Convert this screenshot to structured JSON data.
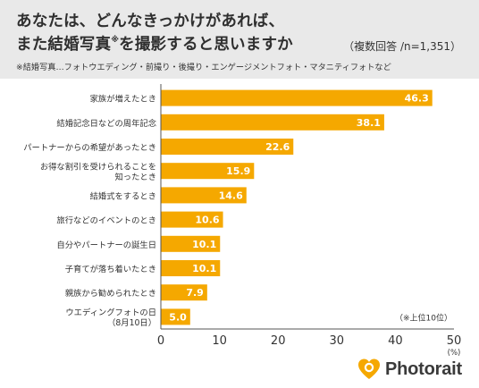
{
  "header": {
    "title_line1": "あなたは、どんなきっかけがあれば、",
    "title_line2_main": "また結婚写真",
    "title_line2_sup": "※",
    "title_line2_rest": "を撮影すると思いますか",
    "sample": "（複数回答 /n=1,351）",
    "note": "※結婚写真…フォトウエディング・前撮り・後撮り・エンゲージメントフォト・マタニティフォトなど"
  },
  "brand": {
    "name": "Photorait",
    "icon": "heart-camera-icon",
    "color": "#f5a800"
  },
  "chart_data": {
    "type": "bar",
    "orientation": "horizontal",
    "categories": [
      [
        "家族が増えたとき"
      ],
      [
        "結婚記念日などの周年記念"
      ],
      [
        "パートナーからの希望があったとき"
      ],
      [
        "お得な割引を受けられることを",
        "知ったとき"
      ],
      [
        "結婚式をするとき"
      ],
      [
        "旅行などのイベントのとき"
      ],
      [
        "自分やパートナーの誕生日"
      ],
      [
        "子育てが落ち着いたとき"
      ],
      [
        "親族から勧められたとき"
      ],
      [
        "ウエディングフォトの日",
        "（8月10日）"
      ]
    ],
    "values": [
      46.3,
      38.1,
      22.6,
      15.9,
      14.6,
      10.6,
      10.1,
      10.1,
      7.9,
      5.0
    ],
    "value_labels": [
      "46.3",
      "38.1",
      "22.6",
      "15.9",
      "14.6",
      "10.6",
      "10.1",
      "10.1",
      "7.9",
      "5.0"
    ],
    "xlim": [
      0,
      50
    ],
    "xticks": [
      0,
      10,
      20,
      30,
      40,
      50
    ],
    "xlabel": "(%)",
    "annotation": "（※上位10位）",
    "bar_color": "#f5a800",
    "grid": false
  }
}
